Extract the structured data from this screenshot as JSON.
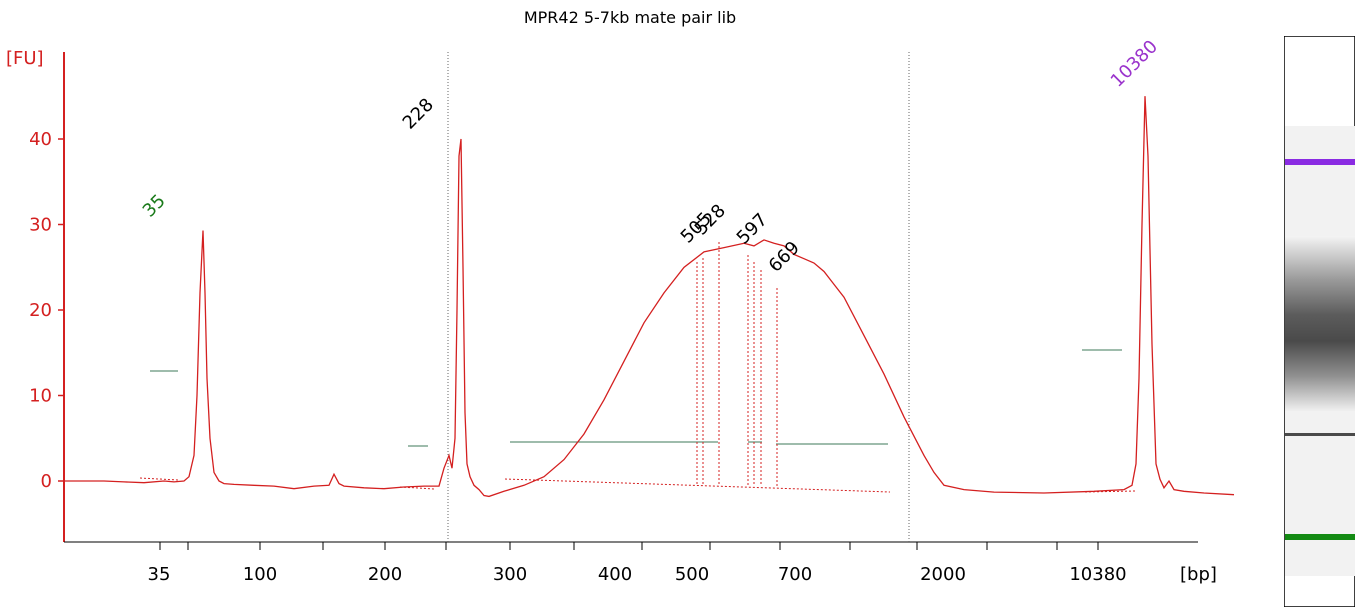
{
  "chart_data": {
    "type": "line",
    "title": "MPR42 5-7kb mate pair lib",
    "ylabel": "[FU]",
    "xlabel": "[bp]",
    "ylim": [
      -7,
      50
    ],
    "yticks": [
      0,
      10,
      20,
      30,
      40
    ],
    "xticks": [
      "35",
      "100",
      "200",
      "300",
      "400",
      "500",
      "700",
      "2000",
      "10380"
    ],
    "series": [
      {
        "color": "#d42020",
        "x": [
          20,
          40,
          60,
          80,
          100,
          120,
          130,
          140,
          145,
          150,
          153,
          156,
          159,
          161,
          163,
          166,
          170,
          175,
          180,
          190,
          210,
          230,
          250,
          270,
          285,
          290,
          295,
          300,
          320,
          340,
          360,
          380,
          395,
          400,
          405,
          408,
          411,
          413,
          415,
          417,
          419,
          421,
          423,
          426,
          430,
          435,
          440,
          445,
          460,
          480,
          500,
          520,
          540,
          560,
          580,
          600,
          620,
          640,
          660,
          680,
          700,
          710,
          720,
          730,
          740,
          750,
          760,
          770,
          780,
          790,
          800,
          820,
          840,
          860,
          880,
          890,
          900,
          920,
          950,
          1000,
          1050,
          1080,
          1088,
          1092,
          1095,
          1098,
          1101,
          1104,
          1108,
          1112,
          1116,
          1120,
          1125,
          1130,
          1140,
          1160,
          1190
        ],
        "y": [
          0,
          0,
          0,
          -0.1,
          -0.2,
          0,
          -0.1,
          0,
          0.5,
          3,
          10,
          22,
          29.3,
          22,
          12,
          5,
          1,
          0,
          -0.3,
          -0.4,
          -0.5,
          -0.6,
          -0.9,
          -0.6,
          -0.5,
          0.8,
          -0.3,
          -0.6,
          -0.8,
          -0.9,
          -0.7,
          -0.6,
          -0.6,
          1.5,
          3,
          1.5,
          5,
          20,
          38,
          40,
          25,
          8,
          2,
          0.5,
          -0.5,
          -1,
          -1.7,
          -1.8,
          -1.2,
          -0.5,
          0.5,
          2.5,
          5.5,
          9.5,
          14,
          18.5,
          22,
          25,
          26.8,
          27.3,
          27.8,
          27.5,
          28.2,
          27.8,
          27.5,
          26.5,
          26,
          25.5,
          24.5,
          23,
          21.5,
          17,
          12.5,
          7.5,
          3,
          1,
          -0.5,
          -1,
          -1.3,
          -1.4,
          -1.2,
          -1,
          -0.5,
          2,
          12,
          30,
          45,
          38,
          16,
          2,
          0.2,
          -0.8,
          0,
          -1,
          -1.2,
          -1.4,
          -1.6
        ]
      }
    ],
    "peaks": [
      {
        "label": "35",
        "color": "#1a7a1a"
      },
      {
        "label": "228",
        "color": "#000000"
      },
      {
        "label": "505",
        "color": "#000000"
      },
      {
        "label": "528",
        "color": "#000000"
      },
      {
        "label": "597",
        "color": "#000000"
      },
      {
        "label": "669",
        "color": "#000000"
      },
      {
        "label": "10380",
        "color": "#9a33cc"
      }
    ],
    "grid": false,
    "legend": "none"
  },
  "gel": {
    "upper_marker_color": "#8a2be2",
    "lower_marker_color": "#138a13",
    "band_color": "#4a4a4a"
  },
  "colors": {
    "axis": "#d42020",
    "trace": "#d42020",
    "region": "#3c7a5a",
    "xaxis": "#000000"
  }
}
